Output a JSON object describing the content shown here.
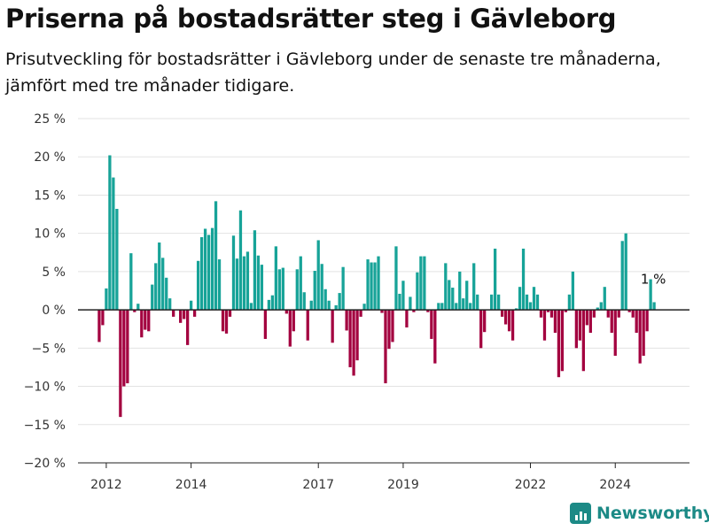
{
  "title": "Priserna på bostadsrätter steg i Gävleborg",
  "subtitle": "Prisutveckling för bostadsrätter i Gävleborg under de senaste tre månaderna, jämfört med tre månader tidigare.",
  "brand": "Newsworthy",
  "colors": {
    "positive": "#17a398",
    "negative": "#a3003f",
    "grid": "#e3e3e3",
    "axis": "#222222",
    "brand": "#1c8a86"
  },
  "chart_data": {
    "type": "bar",
    "title": "Priserna på bostadsrätter steg i Gävleborg",
    "xlabel": "",
    "ylabel": "",
    "ylim": [
      -20,
      25
    ],
    "yticks": [
      -20,
      -15,
      -10,
      -5,
      0,
      5,
      10,
      15,
      20,
      25
    ],
    "ytick_labels": [
      "−20 %",
      "−15 %",
      "−10 %",
      "−5 %",
      "0 %",
      "5 %",
      "10 %",
      "15 %",
      "20 %",
      "25 %"
    ],
    "xlim": [
      "2011-05",
      "2025-10"
    ],
    "xtick_labels": [
      "2012",
      "2014",
      "2017",
      "2019",
      "2022",
      "2024"
    ],
    "xtick_dates": [
      "2012-01",
      "2014-01",
      "2017-01",
      "2019-01",
      "2022-01",
      "2024-01"
    ],
    "grid": true,
    "annotation": {
      "text": "1 %",
      "month": "2024-12",
      "value": 1
    },
    "months": [
      "2011-11",
      "2011-12",
      "2012-01",
      "2012-02",
      "2012-03",
      "2012-04",
      "2012-05",
      "2012-06",
      "2012-07",
      "2012-08",
      "2012-09",
      "2012-10",
      "2012-11",
      "2012-12",
      "2013-01",
      "2013-02",
      "2013-03",
      "2013-04",
      "2013-05",
      "2013-06",
      "2013-07",
      "2013-08",
      "2013-09",
      "2013-10",
      "2013-11",
      "2013-12",
      "2014-01",
      "2014-02",
      "2014-03",
      "2014-04",
      "2014-05",
      "2014-06",
      "2014-07",
      "2014-08",
      "2014-09",
      "2014-10",
      "2014-11",
      "2014-12",
      "2015-01",
      "2015-02",
      "2015-03",
      "2015-04",
      "2015-05",
      "2015-06",
      "2015-07",
      "2015-08",
      "2015-09",
      "2015-10",
      "2015-11",
      "2015-12",
      "2016-01",
      "2016-02",
      "2016-03",
      "2016-04",
      "2016-05",
      "2016-06",
      "2016-07",
      "2016-08",
      "2016-09",
      "2016-10",
      "2016-11",
      "2016-12",
      "2017-01",
      "2017-02",
      "2017-03",
      "2017-04",
      "2017-05",
      "2017-06",
      "2017-07",
      "2017-08",
      "2017-09",
      "2017-10",
      "2017-11",
      "2017-12",
      "2018-01",
      "2018-02",
      "2018-03",
      "2018-04",
      "2018-05",
      "2018-06",
      "2018-07",
      "2018-08",
      "2018-09",
      "2018-10",
      "2018-11",
      "2018-12",
      "2019-01",
      "2019-02",
      "2019-03",
      "2019-04",
      "2019-05",
      "2019-06",
      "2019-07",
      "2019-08",
      "2019-09",
      "2019-10",
      "2019-11",
      "2019-12",
      "2020-01",
      "2020-02",
      "2020-03",
      "2020-04",
      "2020-05",
      "2020-06",
      "2020-07",
      "2020-08",
      "2020-09",
      "2020-10",
      "2020-11",
      "2020-12",
      "2021-01",
      "2021-02",
      "2021-03",
      "2021-04",
      "2021-05",
      "2021-06",
      "2021-07",
      "2021-08",
      "2021-09",
      "2021-10",
      "2021-11",
      "2021-12",
      "2022-01",
      "2022-02",
      "2022-03",
      "2022-04",
      "2022-05",
      "2022-06",
      "2022-07",
      "2022-08",
      "2022-09",
      "2022-10",
      "2022-11",
      "2022-12",
      "2023-01",
      "2023-02",
      "2023-03",
      "2023-04",
      "2023-05",
      "2023-06",
      "2023-07",
      "2023-08",
      "2023-09",
      "2023-10",
      "2023-11",
      "2023-12",
      "2024-01",
      "2024-02",
      "2024-03",
      "2024-04",
      "2024-05",
      "2024-06",
      "2024-07",
      "2024-08",
      "2024-09",
      "2024-10",
      "2024-11",
      "2024-12"
    ],
    "values": [
      -4.2,
      -2.0,
      2.8,
      20.2,
      17.3,
      13.2,
      -14.0,
      -10.0,
      -9.6,
      7.4,
      -0.3,
      0.8,
      -3.6,
      -2.6,
      -2.8,
      3.3,
      6.1,
      8.8,
      6.8,
      4.2,
      1.5,
      -0.9,
      0,
      -1.7,
      -1.2,
      -4.6,
      1.2,
      -0.9,
      6.4,
      9.5,
      10.6,
      9.8,
      10.7,
      14.2,
      6.6,
      -2.8,
      -3.1,
      -0.9,
      9.7,
      6.7,
      13.0,
      7.0,
      7.6,
      0.9,
      10.4,
      7.1,
      5.9,
      -3.8,
      1.3,
      1.9,
      8.3,
      5.3,
      5.5,
      -0.5,
      -4.8,
      -2.8,
      5.3,
      7.0,
      2.3,
      -4.0,
      1.2,
      5.1,
      9.1,
      6.0,
      2.7,
      1.2,
      -4.3,
      0.6,
      2.2,
      5.6,
      -2.7,
      -7.5,
      -8.6,
      -6.6,
      -0.9,
      0.8,
      6.6,
      6.2,
      6.2,
      7.0,
      -0.4,
      -9.6,
      -5.1,
      -4.2,
      8.3,
      2.1,
      3.8,
      -2.3,
      1.7,
      -0.3,
      4.9,
      7.0,
      7.0,
      -0.3,
      -3.8,
      -7.0,
      0.9,
      0.9,
      6.1,
      3.9,
      2.9,
      0.9,
      5.0,
      1.5,
      3.8,
      0.9,
      6.1,
      2.0,
      -5.0,
      -2.9,
      0,
      2.0,
      8.0,
      2.0,
      -0.9,
      -1.9,
      -2.8,
      -4.0,
      0.2,
      3.0,
      8.0,
      2.0,
      1.0,
      3.0,
      2.0,
      -1.0,
      -4.0,
      -0.3,
      -1.0,
      -3.0,
      -8.8,
      -8.0,
      -0.3,
      2.0,
      5.0,
      -5.0,
      -4.0,
      -8.0,
      -2.0,
      -3.0,
      -1.0,
      0.3,
      1.0,
      3.0,
      -1.0,
      -3.0,
      -6.0,
      -1.0,
      9.0,
      10.0,
      -0.3,
      -1.0,
      -3.0,
      -7.0,
      -6.0,
      -2.8,
      4.0,
      1.0
    ]
  }
}
